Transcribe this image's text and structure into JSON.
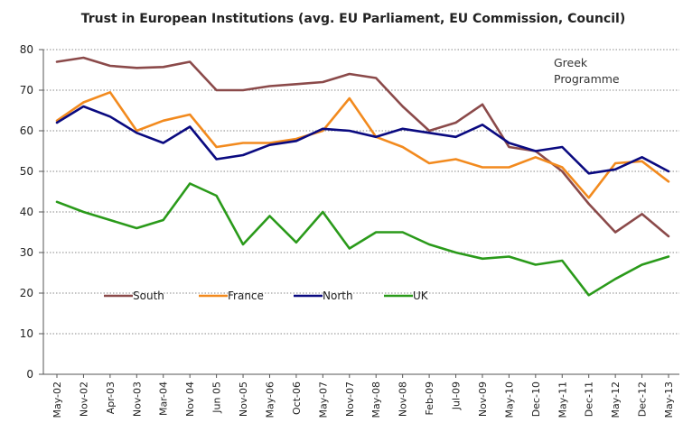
{
  "chart_data": {
    "type": "line",
    "title": "Trust in European Institutions (avg. EU Parliament, EU Commission, Council)",
    "xlabel": "",
    "ylabel": "",
    "ylim": [
      0,
      80
    ],
    "yticks": [
      0,
      10,
      20,
      30,
      40,
      50,
      60,
      70,
      80
    ],
    "grid": true,
    "legend_position": "bottom-left",
    "categories": [
      "May-02",
      "Nov-02",
      "Apr-03",
      "Nov-03",
      "Mar-04",
      "Nov 04",
      "Jun 05",
      "Nov-05",
      "May-06",
      "Oct-06",
      "May-07",
      "Nov-07",
      "May-08",
      "Nov-08",
      "Feb-09",
      "Jul-09",
      "Nov-09",
      "May-10",
      "Dec-10",
      "May-11",
      "Dec-11",
      "May-12",
      "Dec-12",
      "May-13"
    ],
    "annotation": [
      "Greek",
      "Programme"
    ],
    "series": [
      {
        "name": "South",
        "color": "#8B4A4A",
        "values": [
          77,
          78,
          76,
          75.5,
          75.7,
          77,
          70,
          70,
          71,
          71.5,
          72,
          74,
          73,
          66,
          60,
          62,
          66.5,
          56,
          55,
          50,
          42,
          35,
          39.5,
          34
        ]
      },
      {
        "name": "France",
        "color": "#F28A1E",
        "values": [
          62.5,
          67,
          69.5,
          60,
          62.5,
          64,
          56,
          57,
          57,
          58,
          60,
          68,
          58.5,
          56,
          52,
          53,
          51,
          51,
          53.5,
          51,
          43.5,
          52,
          52.5,
          47.5
        ]
      },
      {
        "name": "North",
        "color": "#0A0A80",
        "values": [
          62,
          66,
          63.5,
          59.5,
          57,
          61,
          53,
          54,
          56.5,
          57.5,
          60.5,
          60,
          58.5,
          60.5,
          59.5,
          58.5,
          61.5,
          57,
          55,
          56,
          49.5,
          50.5,
          53.5,
          50
        ]
      },
      {
        "name": "UK",
        "color": "#2A9A1A",
        "values": [
          42.5,
          40,
          38,
          36,
          38,
          47,
          44,
          32,
          39,
          32.5,
          40,
          31,
          35,
          35,
          32,
          30,
          28.5,
          29,
          27,
          28,
          19.5,
          23.5,
          27,
          29
        ]
      }
    ]
  }
}
